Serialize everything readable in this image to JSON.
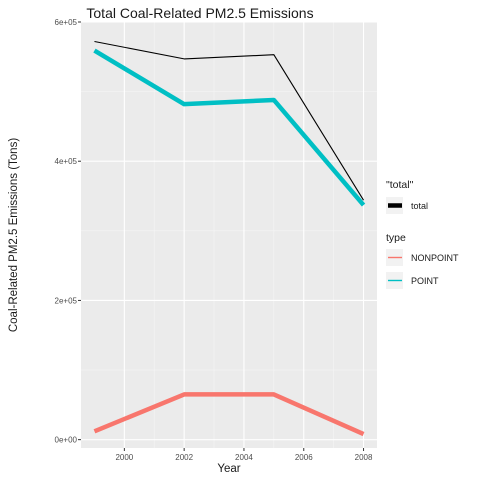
{
  "chart_data": {
    "type": "line",
    "title": "Total Coal-Related PM2.5 Emissions",
    "xlabel": "Year",
    "ylabel": "Coal-Related PM2.5 Emissions (Tons)",
    "x": [
      1999,
      2002,
      2005,
      2008
    ],
    "xlim": [
      1998.55,
      2008.45
    ],
    "ylim": [
      -12000,
      600000
    ],
    "x_ticks": [
      2000,
      2002,
      2004,
      2006,
      2008
    ],
    "x_tick_labels": [
      "2000",
      "2002",
      "2004",
      "2006",
      "2008"
    ],
    "y_ticks": [
      0,
      200000,
      400000,
      600000
    ],
    "y_tick_labels": [
      "0e+00",
      "2e+05",
      "4e+05",
      "6e+05"
    ],
    "grid": true,
    "legend_placement": "right",
    "series": [
      {
        "name": "total",
        "legend_group": "\"total\"",
        "color": "#000000",
        "values": [
          572000,
          547000,
          553000,
          344000
        ]
      },
      {
        "name": "NONPOINT",
        "legend_group": "type",
        "color": "#F8766D",
        "values": [
          12000,
          65000,
          65000,
          8000
        ]
      },
      {
        "name": "POINT",
        "legend_group": "type",
        "color": "#00BFC4",
        "values": [
          559000,
          482000,
          488000,
          337000
        ]
      }
    ],
    "legends": [
      {
        "title": "\"total\"",
        "entries": [
          "total"
        ]
      },
      {
        "title": "type",
        "entries": [
          "NONPOINT",
          "POINT"
        ]
      }
    ]
  }
}
